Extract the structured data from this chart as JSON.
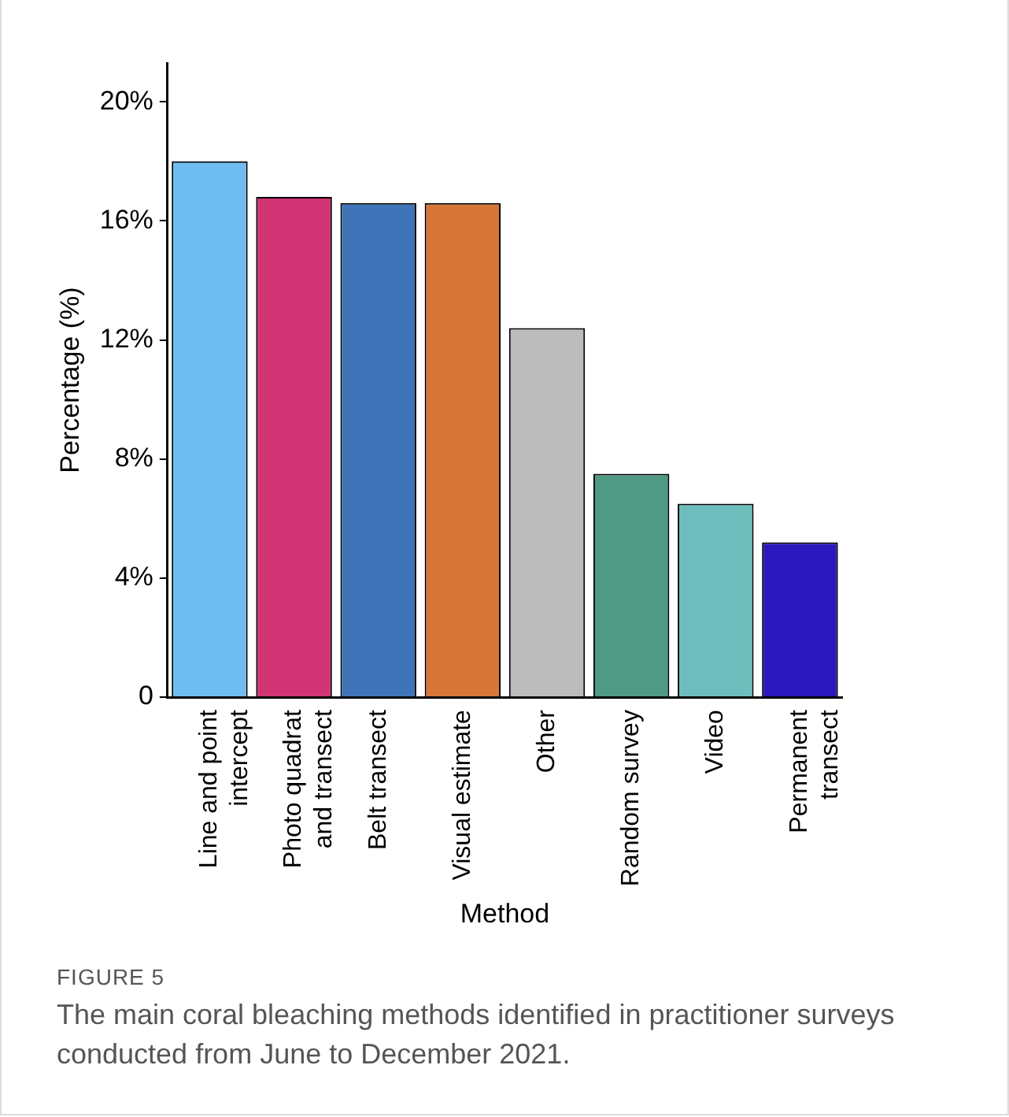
{
  "chart_data": {
    "type": "bar",
    "xlabel": "Method",
    "ylabel": "Percentage (%)",
    "categories": [
      "Line and point intercept",
      "Photo quadrat and transect",
      "Belt transect",
      "Visual estimate",
      "Other",
      "Random survey",
      "Video",
      "Permanent transect"
    ],
    "values": [
      18.0,
      16.8,
      16.6,
      16.6,
      12.4,
      7.5,
      6.5,
      5.2
    ],
    "colors": [
      "#6fbdf0",
      "#d03472",
      "#3f75b8",
      "#d8763a",
      "#bcbcbc",
      "#4f9a84",
      "#6ebdbd",
      "#2c18bd"
    ],
    "ylim": [
      0,
      21.3
    ],
    "yticks": [
      0,
      {
        "value": 4,
        "label": "4%"
      },
      {
        "value": 8,
        "label": "8%"
      },
      {
        "value": 12,
        "label": "12%"
      },
      {
        "value": 16,
        "label": "16%"
      },
      {
        "value": 20,
        "label": "20%"
      }
    ],
    "grid": false,
    "legend": false,
    "annotations": [
      "FIGURE 5",
      "The main coral bleaching methods identified in practitioner surveys conducted from June to December 2021."
    ]
  }
}
